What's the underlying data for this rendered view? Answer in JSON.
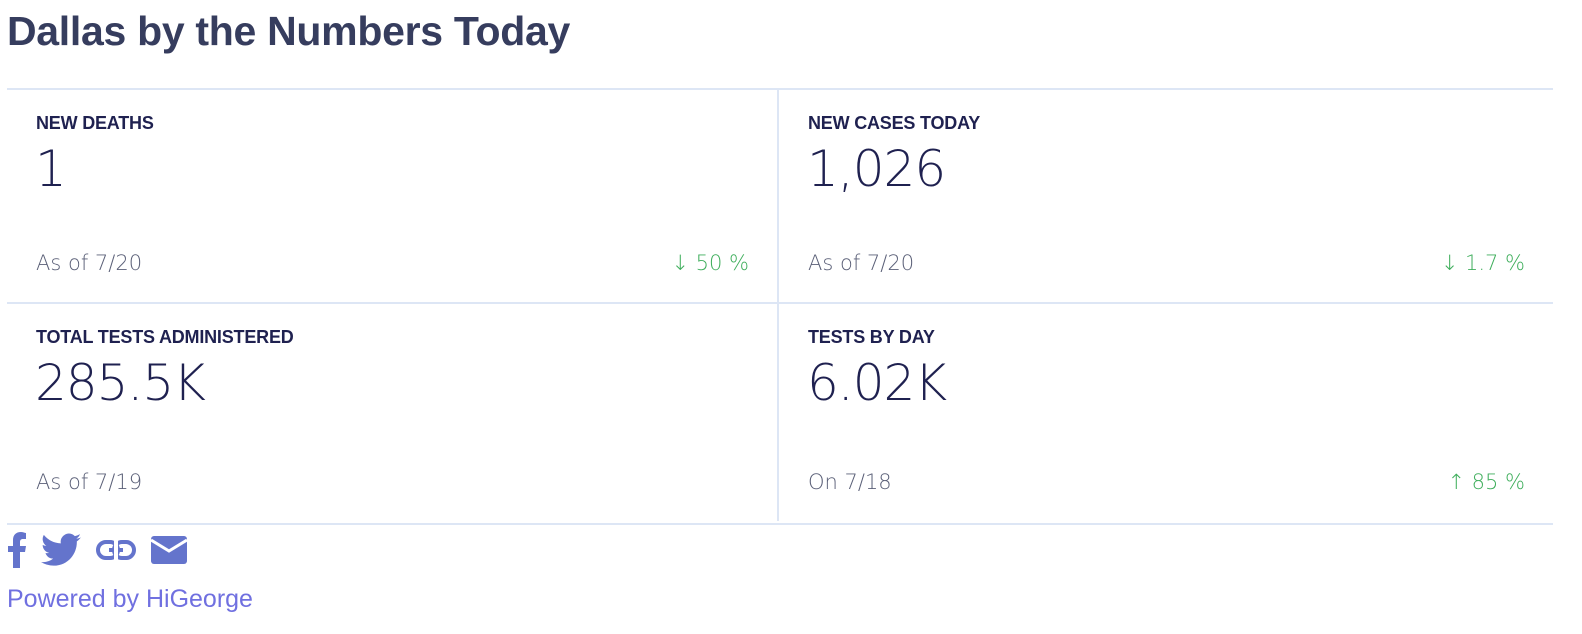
{
  "title": "Dallas by the Numbers Today",
  "cards": [
    {
      "label": "NEW DEATHS",
      "value": "1",
      "date": "As of 7/20",
      "delta": "↓ 50 %",
      "trend": "down"
    },
    {
      "label": "NEW CASES TODAY",
      "value": "1,026",
      "date": "As of 7/20",
      "delta": "↓ 1.7 %",
      "trend": "down"
    },
    {
      "label": "TOTAL TESTS ADMINISTERED",
      "value": "285.5K",
      "date": "As of 7/19",
      "delta": null
    },
    {
      "label": "TESTS BY DAY",
      "value": "6.02K",
      "date": "On 7/18",
      "delta": "↑ 85 %",
      "trend": "up"
    }
  ],
  "share": {
    "icons": [
      "facebook-icon",
      "twitter-icon",
      "link-icon",
      "email-icon"
    ]
  },
  "footer": {
    "powered_by": "Powered by HiGeorge"
  },
  "colors": {
    "title": "#363d5e",
    "positive": "#3fae5c",
    "accent": "#6474cc",
    "link": "#7070e0"
  }
}
